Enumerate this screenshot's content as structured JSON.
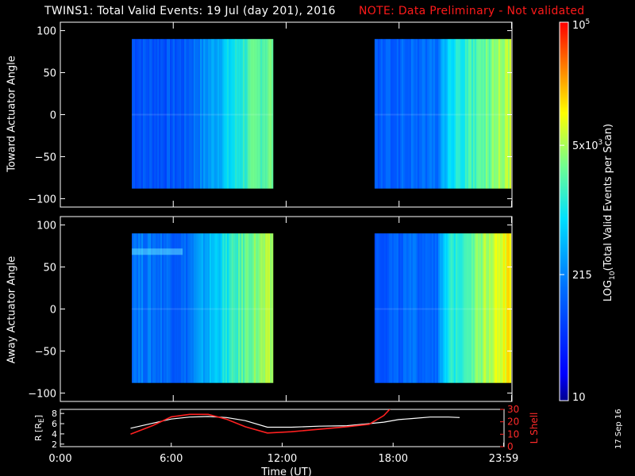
{
  "header": {
    "title": "TWINS1: Total Valid Events: 19 Jul (day 201), 2016",
    "note": "NOTE: Data Preliminary - Not validated"
  },
  "colors": {
    "background": "#000000",
    "note": "#ff1a1a",
    "r_line": "#ffffff",
    "l_shell_line": "#ff2020",
    "colormap": [
      "#000090",
      "#0000ff",
      "#0070ff",
      "#00e0ff",
      "#70ff90",
      "#ffff00",
      "#ff8000",
      "#ff0000"
    ]
  },
  "colorbar": {
    "label": "LOG10(Total Valid Events per Scan)",
    "label_base": "LOG",
    "label_sub": "10",
    "label_rest": "(Total Valid Events per Scan)",
    "scale": "log",
    "ticks": [
      {
        "label": "10",
        "value": 10
      },
      {
        "label": "215",
        "value": 215
      },
      {
        "label": "5x103",
        "base": "5x10",
        "exp": "3",
        "value": 5000
      },
      {
        "label": "105",
        "base": "10",
        "exp": "5",
        "value": 100000
      }
    ]
  },
  "x_axis": {
    "label": "Time (UT)",
    "range": [
      0,
      24
    ],
    "ticks": [
      {
        "label": "0:00",
        "value": 0
      },
      {
        "label": "6:00",
        "value": 6
      },
      {
        "label": "12:00",
        "value": 12
      },
      {
        "label": "18:00",
        "value": 18
      },
      {
        "label": "23:59",
        "value": 23.98
      }
    ]
  },
  "chart_data": [
    {
      "type": "heatmap",
      "ylabel": "Toward Actuator Angle",
      "ylim": [
        -110,
        110
      ],
      "yticks": [
        "100",
        "50",
        "0",
        "−50",
        "−100"
      ],
      "ytick_values": [
        100,
        50,
        0,
        -50,
        -100
      ],
      "angle_range": [
        -88,
        90
      ],
      "data_intervals_ut": [
        [
          3.8,
          11.3
        ],
        [
          16.7,
          23.9
        ]
      ],
      "colorscale": "log",
      "description_of_trend": [
        {
          "ut": 3.8,
          "log10": 2.0
        },
        {
          "ut": 6.5,
          "log10": 2.0
        },
        {
          "ut": 8.2,
          "log10": 2.6
        },
        {
          "ut": 10.0,
          "log10": 3.3
        },
        {
          "ut": 11.3,
          "log10": 3.5
        },
        {
          "ut": 16.7,
          "log10": 2.0
        },
        {
          "ut": 20.0,
          "log10": 2.2
        },
        {
          "ut": 20.6,
          "log10": 2.9
        },
        {
          "ut": 22.5,
          "log10": 3.4
        },
        {
          "ut": 23.9,
          "log10": 3.8
        }
      ]
    },
    {
      "type": "heatmap",
      "ylabel": "Away Actuator Angle",
      "ylim": [
        -110,
        110
      ],
      "yticks": [
        "100",
        "50",
        "0",
        "−50",
        "−100"
      ],
      "ytick_values": [
        100,
        50,
        0,
        -50,
        -100
      ],
      "angle_range": [
        -88,
        90
      ],
      "data_intervals_ut": [
        [
          3.8,
          11.3
        ],
        [
          16.7,
          23.9
        ]
      ],
      "colorscale": "log",
      "description_of_trend": [
        {
          "ut": 3.8,
          "log10": 2.3
        },
        {
          "ut": 6.5,
          "log10": 2.1
        },
        {
          "ut": 8.2,
          "log10": 2.8
        },
        {
          "ut": 10.0,
          "log10": 3.5
        },
        {
          "ut": 11.3,
          "log10": 3.7
        },
        {
          "ut": 16.7,
          "log10": 2.0
        },
        {
          "ut": 20.0,
          "log10": 2.2
        },
        {
          "ut": 20.6,
          "log10": 3.0
        },
        {
          "ut": 22.5,
          "log10": 3.7
        },
        {
          "ut": 23.9,
          "log10": 4.1
        }
      ]
    },
    {
      "type": "line",
      "ylabel_left": "R [RE]",
      "ylabel_left_base": "R [R",
      "ylabel_left_sub": "E",
      "ylabel_left_end": "]",
      "ylabel_right": "L Shell",
      "ylim_left": [
        1.5,
        8.8
      ],
      "yticks_left": [
        "8",
        "6",
        "4",
        "2"
      ],
      "ytick_values_left": [
        8,
        6,
        4,
        2
      ],
      "ylim_right": [
        0,
        30
      ],
      "yticks_right": [
        "30",
        "20",
        "10",
        "0"
      ],
      "ytick_values_right": [
        30,
        20,
        10,
        0
      ],
      "series": [
        {
          "name": "R [RE]",
          "axis": "left",
          "x": [
            3.8,
            5.0,
            6.0,
            7.0,
            8.0,
            9.0,
            10.0,
            11.2,
            12.5,
            14.0,
            15.5,
            16.7,
            17.5,
            18.3,
            19.0,
            20.0,
            21.0,
            21.6
          ],
          "y": [
            5.1,
            6.1,
            6.9,
            7.3,
            7.4,
            7.2,
            6.6,
            5.3,
            5.3,
            5.5,
            5.6,
            6.0,
            6.3,
            6.8,
            7.0,
            7.3,
            7.3,
            7.2
          ]
        },
        {
          "name": "L Shell",
          "axis": "right",
          "x": [
            3.8,
            5.0,
            6.0,
            7.0,
            8.0,
            9.0,
            10.0,
            11.2,
            12.5,
            14.0,
            15.5,
            16.7,
            17.5,
            18.0
          ],
          "y": [
            10,
            17,
            24,
            26,
            26,
            22,
            16,
            11,
            12,
            14,
            16,
            18,
            25,
            33
          ]
        }
      ],
      "xlim": [
        0,
        24
      ]
    }
  ],
  "footer": {
    "date_stamp": "17 Sep 16"
  }
}
